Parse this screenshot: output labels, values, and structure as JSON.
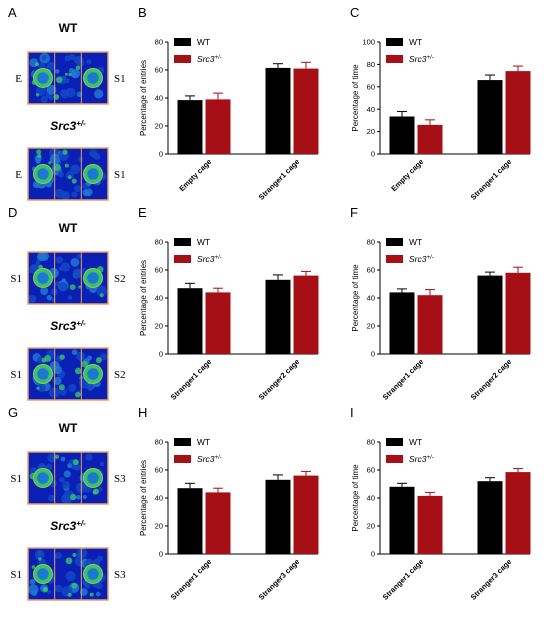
{
  "colors": {
    "wt": "#000000",
    "src3": "#a50f15",
    "arena_frame": "#e8a06a",
    "heat_bg": "#0a1fb4",
    "heat_mid": "#1f78d0",
    "heat_hot": "#34c46a",
    "heat_ring": "#c9d62a"
  },
  "legend": {
    "wt": "WT",
    "src3_base": "Src3",
    "src3_sup": "+/-"
  },
  "heatmap_panels": [
    {
      "letter": "A",
      "arenas": [
        {
          "title": "WT",
          "title_sup": "",
          "left_label": "E",
          "right_label": "S1"
        },
        {
          "title": "Src3",
          "title_sup": "+/-",
          "left_label": "E",
          "right_label": "S1"
        }
      ]
    },
    {
      "letter": "D",
      "arenas": [
        {
          "title": "WT",
          "title_sup": "",
          "left_label": "S1",
          "right_label": "S2"
        },
        {
          "title": "Src3",
          "title_sup": "+/-",
          "left_label": "S1",
          "right_label": "S2"
        }
      ]
    },
    {
      "letter": "G",
      "arenas": [
        {
          "title": "WT",
          "title_sup": "",
          "left_label": "S1",
          "right_label": "S3"
        },
        {
          "title": "Src3",
          "title_sup": "+/-",
          "left_label": "S1",
          "right_label": "S3"
        }
      ]
    }
  ],
  "chart_data": [
    {
      "letter": "B",
      "type": "bar",
      "ylabel": "Percentage of entries",
      "ylim": [
        0,
        80
      ],
      "yticks": [
        0,
        20,
        40,
        60,
        80
      ],
      "categories": [
        "Empty cage",
        "Stranger1  cage"
      ],
      "series": [
        {
          "name": "WT",
          "values": [
            38.5,
            61.5
          ],
          "err": [
            3.0,
            3.0
          ]
        },
        {
          "name": "Src3+/-",
          "values": [
            39,
            61
          ],
          "err": [
            4.5,
            4.5
          ]
        }
      ]
    },
    {
      "letter": "C",
      "type": "bar",
      "ylabel": "Percentage of time",
      "ylim": [
        0,
        100
      ],
      "yticks": [
        0,
        20,
        40,
        60,
        80,
        100
      ],
      "categories": [
        "Empty cage",
        "Stranger1 cage"
      ],
      "series": [
        {
          "name": "WT",
          "values": [
            33.5,
            66
          ],
          "err": [
            4.5,
            4.5
          ]
        },
        {
          "name": "Src3+/-",
          "values": [
            26,
            74
          ],
          "err": [
            4.5,
            4.5
          ]
        }
      ]
    },
    {
      "letter": "E",
      "type": "bar",
      "ylabel": "Percentage of entries",
      "ylim": [
        0,
        80
      ],
      "yticks": [
        0,
        20,
        40,
        60,
        80
      ],
      "categories": [
        "Stranger1 cage",
        "Stranger2 cage"
      ],
      "series": [
        {
          "name": "WT",
          "values": [
            47,
            53
          ],
          "err": [
            3.5,
            3.5
          ]
        },
        {
          "name": "Src3+/-",
          "values": [
            44,
            56
          ],
          "err": [
            3.0,
            3.0
          ]
        }
      ]
    },
    {
      "letter": "F",
      "type": "bar",
      "ylabel": "Percentage of time",
      "ylim": [
        0,
        80
      ],
      "yticks": [
        0,
        20,
        40,
        60,
        80
      ],
      "categories": [
        "Stranger1 cage",
        "Stranger2 cage"
      ],
      "series": [
        {
          "name": "WT",
          "values": [
            44,
            56
          ],
          "err": [
            2.5,
            2.5
          ]
        },
        {
          "name": "Src3+/-",
          "values": [
            42,
            58
          ],
          "err": [
            4.0,
            4.0
          ]
        }
      ]
    },
    {
      "letter": "H",
      "type": "bar",
      "ylabel": "Percentage of entries",
      "ylim": [
        0,
        80
      ],
      "yticks": [
        0,
        20,
        40,
        60,
        80
      ],
      "categories": [
        "Stranger1 cage",
        "Stranger3 cage"
      ],
      "series": [
        {
          "name": "WT",
          "values": [
            47,
            53
          ],
          "err": [
            3.5,
            3.5
          ]
        },
        {
          "name": "Src3+/-",
          "values": [
            44,
            56
          ],
          "err": [
            3.0,
            3.0
          ]
        }
      ]
    },
    {
      "letter": "I",
      "type": "bar",
      "ylabel": "Percentage of time",
      "ylim": [
        0,
        80
      ],
      "yticks": [
        0,
        20,
        40,
        60,
        80
      ],
      "categories": [
        "Stranger1 cage",
        "Stranger3 cage"
      ],
      "series": [
        {
          "name": "WT",
          "values": [
            48,
            52
          ],
          "err": [
            2.5,
            2.5
          ]
        },
        {
          "name": "Src3+/-",
          "values": [
            41.5,
            58.5
          ],
          "err": [
            2.5,
            2.5
          ]
        }
      ]
    }
  ]
}
